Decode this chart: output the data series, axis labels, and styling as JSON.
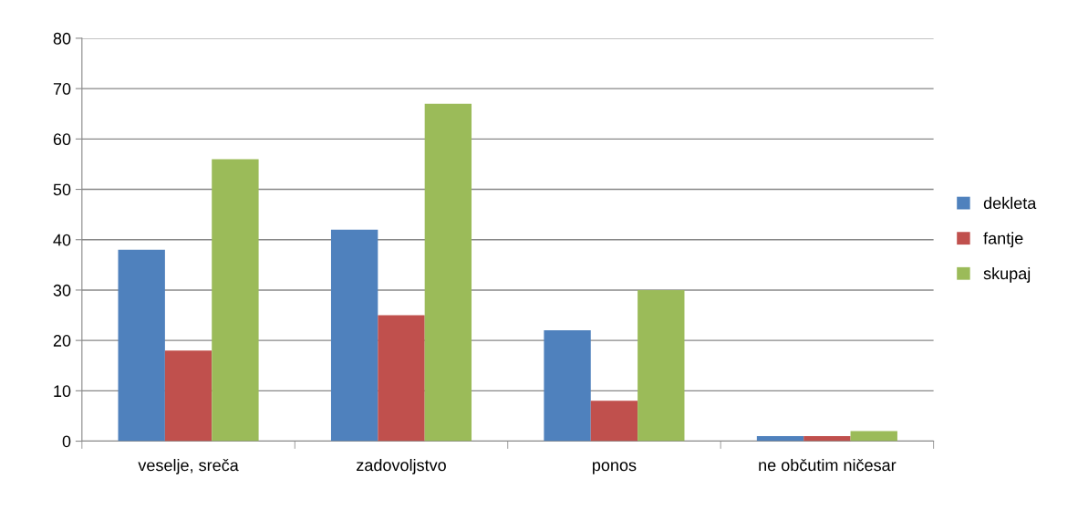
{
  "chart_data": {
    "type": "bar",
    "categories": [
      "veselje, sreča",
      "zadovoljstvo",
      "ponos",
      "ne občutim ničesar"
    ],
    "series": [
      {
        "name": "dekleta",
        "color": "#4f81bd",
        "values": [
          38,
          42,
          22,
          1
        ]
      },
      {
        "name": "fantje",
        "color": "#c0504d",
        "values": [
          18,
          25,
          8,
          1
        ]
      },
      {
        "name": "skupaj",
        "color": "#9bbb59",
        "values": [
          56,
          67,
          30,
          2
        ]
      }
    ],
    "ylim": [
      0,
      80
    ],
    "yticks": [
      0,
      10,
      20,
      30,
      40,
      50,
      60,
      70,
      80
    ],
    "grid": "y",
    "legend": "right"
  }
}
